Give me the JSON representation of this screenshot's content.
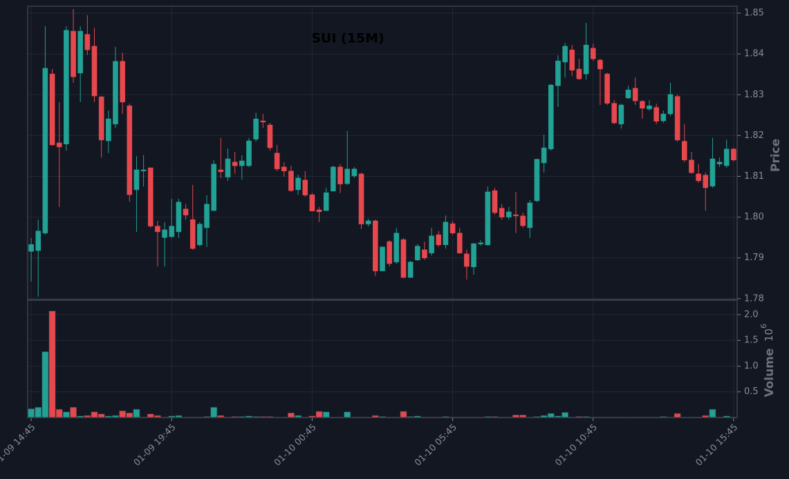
{
  "chart_data": {
    "type": "candlestick",
    "title": "SUI (15M)",
    "ylabel": "Price",
    "up_color": "#22a195",
    "down_color": "#e6484e",
    "grid": true,
    "x": [
      "01-09 14:45",
      null,
      null,
      null,
      null,
      null,
      null,
      null,
      null,
      null,
      null,
      null,
      null,
      null,
      null,
      null,
      null,
      null,
      null,
      null,
      "01-09 19:45",
      null,
      null,
      null,
      null,
      null,
      null,
      null,
      null,
      null,
      null,
      null,
      null,
      null,
      null,
      null,
      null,
      null,
      null,
      null,
      "01-10 00:45",
      null,
      null,
      null,
      null,
      null,
      null,
      null,
      null,
      null,
      null,
      null,
      null,
      null,
      null,
      null,
      null,
      null,
      null,
      null,
      "01-10 05:45",
      null,
      null,
      null,
      null,
      null,
      null,
      null,
      null,
      null,
      null,
      null,
      null,
      null,
      null,
      null,
      null,
      null,
      null,
      null,
      "01-10 10:45",
      null,
      null,
      null,
      null,
      null,
      null,
      null,
      null,
      null,
      null,
      null,
      null,
      null,
      null,
      null,
      null,
      null,
      null,
      null,
      "01-10 15:45"
    ],
    "open": [
      1.7916,
      1.7918,
      1.7961,
      1.8351,
      1.8182,
      1.8179,
      1.8456,
      1.8353,
      1.8448,
      1.8419,
      1.8295,
      1.8187,
      1.8228,
      1.8382,
      1.8273,
      1.8067,
      1.8113,
      1.8121,
      1.7978,
      1.795,
      1.7952,
      1.7964,
      1.802,
      1.7994,
      1.7932,
      1.7974,
      1.8016,
      1.8116,
      1.8098,
      1.8135,
      1.8126,
      1.8126,
      1.8191,
      1.8236,
      1.8226,
      1.8157,
      1.8123,
      1.8113,
      1.8067,
      1.8091,
      1.8055,
      1.8018,
      1.8016,
      1.8064,
      1.8123,
      1.8082,
      1.8101,
      1.8106,
      1.7983,
      1.7991,
      1.7868,
      1.794,
      1.789,
      1.7945,
      1.7852,
      1.7895,
      1.792,
      1.7912,
      1.7957,
      1.7932,
      1.7984,
      1.7961,
      1.791,
      1.7878,
      1.7934,
      1.7932,
      1.8065,
      1.8022,
      1.8,
      1.8006,
      1.8003,
      1.7974,
      1.804,
      1.8133,
      1.8167,
      1.8322,
      1.838,
      1.841,
      1.8363,
      1.8351,
      1.8414,
      1.8385,
      1.8351,
      1.8279,
      1.8228,
      1.8292,
      1.8316,
      1.8284,
      1.8265,
      1.8269,
      1.8236,
      1.8253,
      1.8296,
      1.8186,
      1.814,
      1.8106,
      1.8103,
      1.8076,
      1.813,
      1.8126,
      1.8167
    ],
    "high": [
      1.7949,
      1.7994,
      1.8468,
      1.8363,
      1.8282,
      1.8468,
      1.851,
      1.8468,
      1.8495,
      1.8464,
      1.8297,
      1.8261,
      1.8417,
      1.8403,
      1.8278,
      1.815,
      1.8152,
      1.8122,
      1.7991,
      1.7988,
      1.8045,
      1.8045,
      1.8032,
      1.8079,
      1.7988,
      1.8054,
      1.814,
      1.8194,
      1.8168,
      1.816,
      1.8152,
      1.8194,
      1.8256,
      1.8253,
      1.8231,
      1.8177,
      1.8135,
      1.8126,
      1.8104,
      1.8113,
      1.8059,
      1.8025,
      1.8072,
      1.8126,
      1.813,
      1.8211,
      1.8123,
      1.8109,
      1.7996,
      1.7994,
      1.7928,
      1.7944,
      1.7974,
      1.7949,
      1.7893,
      1.7934,
      1.794,
      1.7974,
      1.7966,
      1.8004,
      1.7991,
      1.7974,
      1.792,
      1.7937,
      1.7944,
      1.8075,
      1.8072,
      1.8032,
      1.8025,
      1.8062,
      1.8011,
      1.8042,
      1.8143,
      1.8202,
      1.8326,
      1.8397,
      1.8427,
      1.8422,
      1.8388,
      1.8476,
      1.8425,
      1.8388,
      1.8354,
      1.8287,
      1.8278,
      1.8322,
      1.8342,
      1.8287,
      1.8287,
      1.8278,
      1.8261,
      1.8329,
      1.83,
      1.8228,
      1.816,
      1.813,
      1.8109,
      1.8194,
      1.8146,
      1.819,
      1.817
    ],
    "low": [
      1.7842,
      1.7805,
      1.7957,
      1.8175,
      1.8025,
      1.8163,
      1.8329,
      1.8282,
      1.8397,
      1.8282,
      1.8146,
      1.8157,
      1.8219,
      1.8253,
      1.8038,
      1.7964,
      1.8075,
      1.7974,
      1.7879,
      1.7879,
      1.7949,
      1.7949,
      1.7994,
      1.792,
      1.7928,
      1.7927,
      1.8016,
      1.8096,
      1.8089,
      1.8106,
      1.8092,
      1.8123,
      1.8185,
      1.8219,
      1.8163,
      1.8113,
      1.8099,
      1.8062,
      1.8055,
      1.805,
      1.8014,
      1.7988,
      1.8016,
      1.8062,
      1.8059,
      1.8079,
      1.8096,
      1.7971,
      1.7977,
      1.7856,
      1.7868,
      1.7879,
      1.7885,
      1.7851,
      1.7852,
      1.7893,
      1.7895,
      1.7906,
      1.7927,
      1.7923,
      1.7957,
      1.791,
      1.7847,
      1.7859,
      1.793,
      1.793,
      1.8006,
      1.7994,
      1.7994,
      1.7961,
      1.7974,
      1.7949,
      1.8037,
      1.8109,
      1.8163,
      1.827,
      1.8342,
      1.8346,
      1.8336,
      1.8337,
      1.8383,
      1.8275,
      1.8275,
      1.8228,
      1.8217,
      1.829,
      1.8275,
      1.8241,
      1.8261,
      1.8228,
      1.8231,
      1.8248,
      1.8185,
      1.8135,
      1.8106,
      1.8084,
      1.8016,
      1.8072,
      1.8123,
      1.8121,
      1.8136
    ],
    "close": [
      1.7933,
      1.7966,
      1.8365,
      1.8177,
      1.8172,
      1.8458,
      1.8344,
      1.8456,
      1.841,
      1.8297,
      1.8189,
      1.8241,
      1.8382,
      1.8282,
      1.8055,
      1.8116,
      1.8116,
      1.7978,
      1.7964,
      1.7969,
      1.7978,
      1.8037,
      1.8005,
      1.7923,
      1.7983,
      1.8032,
      1.813,
      1.8111,
      1.8143,
      1.8126,
      1.8138,
      1.8187,
      1.8241,
      1.8233,
      1.817,
      1.8118,
      1.8113,
      1.8065,
      1.8096,
      1.8054,
      1.8015,
      1.8013,
      1.806,
      1.8123,
      1.8081,
      1.8118,
      1.8118,
      1.7983,
      1.7991,
      1.7868,
      1.7927,
      1.7886,
      1.7961,
      1.7852,
      1.789,
      1.7929,
      1.79,
      1.7954,
      1.7932,
      1.7988,
      1.7961,
      1.7912,
      1.7879,
      1.7935,
      1.7937,
      1.8062,
      1.8011,
      1.8,
      1.8013,
      1.8003,
      1.7979,
      1.8035,
      1.8142,
      1.817,
      1.8324,
      1.8383,
      1.8419,
      1.836,
      1.8339,
      1.8422,
      1.8388,
      1.8363,
      1.8279,
      1.8231,
      1.8275,
      1.8312,
      1.8285,
      1.8267,
      1.8273,
      1.8235,
      1.8253,
      1.8301,
      1.8189,
      1.814,
      1.8109,
      1.8089,
      1.8072,
      1.8143,
      1.8135,
      1.8167,
      1.814
    ],
    "ylim": [
      1.7798,
      1.8517
    ],
    "yticks": [
      1.78,
      1.79,
      {
        "value": 1.8,
        "label": "1.80"
      },
      1.81,
      1.82,
      1.83,
      1.84,
      1.85
    ],
    "volume": {
      "ylabel": "Volume",
      "scale": {
        "base": "10",
        "exponent": "6"
      },
      "values": [
        0.17,
        0.2,
        1.28,
        2.07,
        0.16,
        0.11,
        0.2,
        0.03,
        0.04,
        0.11,
        0.07,
        0.03,
        0.04,
        0.13,
        0.09,
        0.16,
        0.01,
        0.07,
        0.04,
        0.01,
        0.03,
        0.04,
        0.01,
        0.01,
        0.01,
        0.02,
        0.2,
        0.04,
        0.01,
        0.02,
        0.02,
        0.03,
        0.02,
        0.02,
        0.02,
        0.01,
        0.01,
        0.09,
        0.04,
        0.01,
        0.03,
        0.12,
        0.11,
        0.01,
        0.01,
        0.11,
        0.01,
        0.01,
        0.01,
        0.04,
        0.02,
        0.01,
        0.01,
        0.12,
        0.02,
        0.03,
        0.01,
        0.01,
        0.01,
        0.02,
        0.01,
        0.01,
        0.01,
        0.01,
        0.01,
        0.02,
        0.02,
        0.01,
        0.01,
        0.05,
        0.05,
        0.01,
        0.02,
        0.04,
        0.08,
        0.03,
        0.1,
        0.01,
        0.02,
        0.02,
        0.01,
        0.01,
        0.01,
        0.01,
        0.01,
        0.01,
        0.01,
        0.01,
        0.01,
        0.01,
        0.02,
        0.01,
        0.08,
        0.01,
        0.01,
        0.01,
        0.04,
        0.16,
        0.01,
        0.03,
        0.01
      ],
      "ylim": [
        0,
        2.28
      ],
      "yticks": [
        0.5,
        {
          "value": 1,
          "label": "1.0"
        },
        1.5,
        {
          "value": 2,
          "label": "2.0"
        }
      ]
    }
  }
}
